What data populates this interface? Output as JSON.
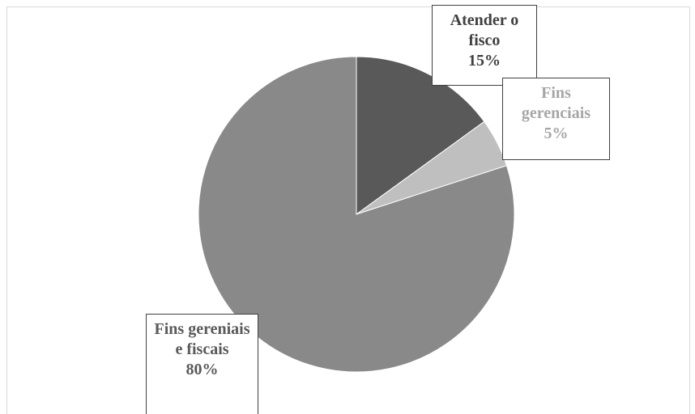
{
  "chart_data": {
    "type": "pie",
    "categories": [
      "Atender o fisco",
      "Fins gerenciais",
      "Fins gereniais e fiscais"
    ],
    "values": [
      15,
      5,
      80
    ],
    "value_labels": [
      "15%",
      "5%",
      "80%"
    ],
    "colors": [
      "#595959",
      "#bfbfbf",
      "#898989"
    ],
    "label_colors": [
      "#404040",
      "#a6a6a6",
      "#595959"
    ]
  }
}
